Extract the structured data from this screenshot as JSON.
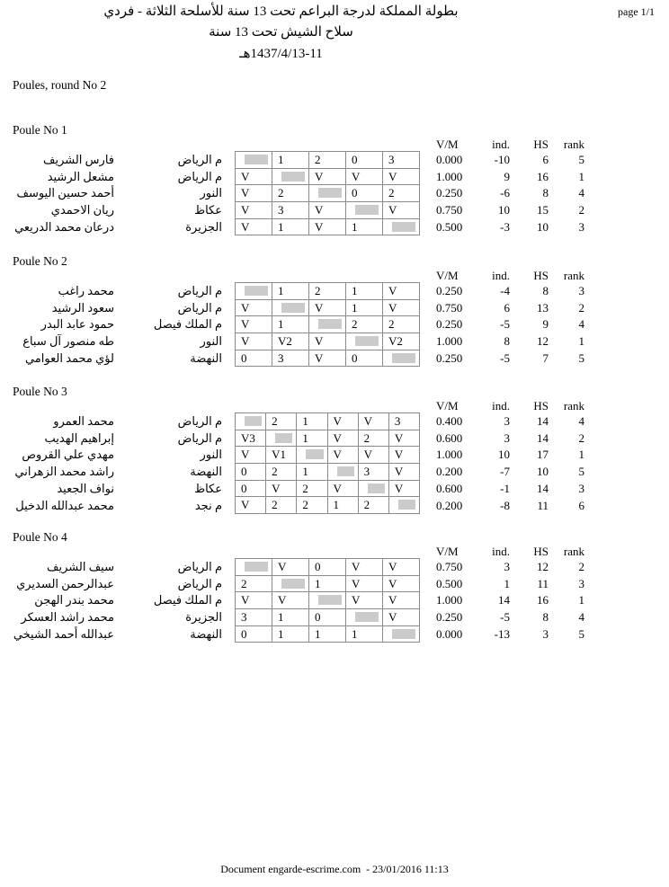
{
  "header": {
    "page_label": "page 1/1",
    "title_lines": [
      "بطولة المملكة لدرجة البراعم تحت 13 سنة للأسلحة الثلاثة - فردي",
      "سلاح الشيش تحت 13 سنة",
      "1437/4/13-11هـ"
    ]
  },
  "round_title": "Poules, round No 2",
  "stats_columns": [
    "V/M",
    "ind.",
    "HS",
    "rank"
  ],
  "poules": [
    {
      "title": "Poule No 1",
      "fencers": [
        {
          "name": "فارس الشريف",
          "club": "م الرياض",
          "scores": [
            null,
            "1",
            "2",
            "0",
            "3"
          ],
          "vm": "0.000",
          "ind": "-10",
          "hs": "6",
          "rank": "5"
        },
        {
          "name": "مشعل الرشيد",
          "club": "م الرياض",
          "scores": [
            "V",
            null,
            "V",
            "V",
            "V"
          ],
          "vm": "1.000",
          "ind": "9",
          "hs": "16",
          "rank": "1"
        },
        {
          "name": "أحمد حسين اليوسف",
          "club": "النور",
          "scores": [
            "V",
            "2",
            null,
            "0",
            "2"
          ],
          "vm": "0.250",
          "ind": "-6",
          "hs": "8",
          "rank": "4"
        },
        {
          "name": "ريان الاحمدي",
          "club": "عكاظ",
          "scores": [
            "V",
            "3",
            "V",
            null,
            "V"
          ],
          "vm": "0.750",
          "ind": "10",
          "hs": "15",
          "rank": "2"
        },
        {
          "name": "درعان محمد الدريعي",
          "club": "الجزيرة",
          "scores": [
            "V",
            "1",
            "V",
            "1",
            null
          ],
          "vm": "0.500",
          "ind": "-3",
          "hs": "10",
          "rank": "3"
        }
      ]
    },
    {
      "title": "Poule No 2",
      "fencers": [
        {
          "name": "محمد راغب",
          "club": "م الرياض",
          "scores": [
            null,
            "1",
            "2",
            "1",
            "V"
          ],
          "vm": "0.250",
          "ind": "-4",
          "hs": "8",
          "rank": "3"
        },
        {
          "name": "سعود الرشيد",
          "club": "م الرياض",
          "scores": [
            "V",
            null,
            "V",
            "1",
            "V"
          ],
          "vm": "0.750",
          "ind": "6",
          "hs": "13",
          "rank": "2"
        },
        {
          "name": "حمود عابد البدر",
          "club": "م الملك فيصل",
          "scores": [
            "V",
            "1",
            null,
            "2",
            "2"
          ],
          "vm": "0.250",
          "ind": "-5",
          "hs": "9",
          "rank": "4"
        },
        {
          "name": "طه منصور آل سباع",
          "club": "النور",
          "scores": [
            "V",
            "V2",
            "V",
            null,
            "V2"
          ],
          "vm": "1.000",
          "ind": "8",
          "hs": "12",
          "rank": "1"
        },
        {
          "name": "لؤي محمد العوامي",
          "club": "النهضة",
          "scores": [
            "0",
            "3",
            "V",
            "0",
            null
          ],
          "vm": "0.250",
          "ind": "-5",
          "hs": "7",
          "rank": "5"
        }
      ]
    },
    {
      "title": "Poule No 3",
      "fencers": [
        {
          "name": "محمد العمرو",
          "club": "م الرياض",
          "scores": [
            null,
            "2",
            "1",
            "V",
            "V",
            "3"
          ],
          "vm": "0.400",
          "ind": "3",
          "hs": "14",
          "rank": "4"
        },
        {
          "name": "إبراهيم الهديب",
          "club": "م الرياض",
          "scores": [
            "V3",
            null,
            "1",
            "V",
            "2",
            "V"
          ],
          "vm": "0.600",
          "ind": "3",
          "hs": "14",
          "rank": "2"
        },
        {
          "name": "مهدي علي القروص",
          "club": "النور",
          "scores": [
            "V",
            "V1",
            null,
            "V",
            "V",
            "V"
          ],
          "vm": "1.000",
          "ind": "10",
          "hs": "17",
          "rank": "1"
        },
        {
          "name": "راشد محمد الزهراني",
          "club": "النهضة",
          "scores": [
            "0",
            "2",
            "1",
            null,
            "3",
            "V"
          ],
          "vm": "0.200",
          "ind": "-7",
          "hs": "10",
          "rank": "5"
        },
        {
          "name": "نواف الجعيد",
          "club": "عكاظ",
          "scores": [
            "0",
            "V",
            "2",
            "V",
            null,
            "V"
          ],
          "vm": "0.600",
          "ind": "-1",
          "hs": "14",
          "rank": "3"
        },
        {
          "name": "محمد عبدالله الدخيل",
          "club": "م نجد",
          "scores": [
            "V",
            "2",
            "2",
            "1",
            "2",
            null
          ],
          "vm": "0.200",
          "ind": "-8",
          "hs": "11",
          "rank": "6"
        }
      ]
    },
    {
      "title": "Poule No 4",
      "fencers": [
        {
          "name": "سيف الشريف",
          "club": "م الرياض",
          "scores": [
            null,
            "V",
            "0",
            "V",
            "V"
          ],
          "vm": "0.750",
          "ind": "3",
          "hs": "12",
          "rank": "2"
        },
        {
          "name": "عبدالرحمن السديري",
          "club": "م الرياض",
          "scores": [
            "2",
            null,
            "1",
            "V",
            "V"
          ],
          "vm": "0.500",
          "ind": "1",
          "hs": "11",
          "rank": "3"
        },
        {
          "name": "محمد بندر الهجن",
          "club": "م الملك فيصل",
          "scores": [
            "V",
            "V",
            null,
            "V",
            "V"
          ],
          "vm": "1.000",
          "ind": "14",
          "hs": "16",
          "rank": "1"
        },
        {
          "name": "محمد راشد العسكر",
          "club": "الجزيرة",
          "scores": [
            "3",
            "1",
            "0",
            null,
            "V"
          ],
          "vm": "0.250",
          "ind": "-5",
          "hs": "8",
          "rank": "4"
        },
        {
          "name": "عبدالله أحمد الشيخي",
          "club": "النهضة",
          "scores": [
            "0",
            "1",
            "1",
            "1",
            null
          ],
          "vm": "0.000",
          "ind": "-13",
          "hs": "3",
          "rank": "5"
        }
      ]
    }
  ],
  "footer": {
    "text": "Document engarde-escrime.com  - 23/01/2016 11:13"
  },
  "colors": {
    "grid_border": "#8a8a8a",
    "diagonal_fill": "#cbcbcb"
  }
}
